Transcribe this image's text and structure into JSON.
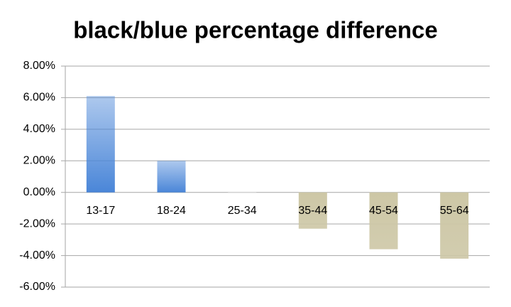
{
  "chart_data": {
    "type": "bar",
    "title": "black/blue percentage difference",
    "categories": [
      "13-17",
      "18-24",
      "25-34",
      "35-44",
      "45-54",
      "55-64"
    ],
    "values": [
      6.1,
      2.0,
      0.05,
      -2.3,
      -3.6,
      -4.2
    ],
    "colors": [
      "#4a86d8",
      "#4a86d8",
      "#e6e6e6",
      "#cdc7a6",
      "#cdc7a6",
      "#cdc7a6"
    ],
    "ylim": [
      -6,
      8
    ],
    "yticks": [
      {
        "value": -6,
        "label": "-6.00%"
      },
      {
        "value": -4,
        "label": "-4.00%"
      },
      {
        "value": -2,
        "label": "-2.00%"
      },
      {
        "value": 0,
        "label": "0.00%"
      },
      {
        "value": 2,
        "label": "2.00%"
      },
      {
        "value": 4,
        "label": "4.00%"
      },
      {
        "value": 6,
        "label": "6.00%"
      },
      {
        "value": 8,
        "label": "8.00%"
      }
    ],
    "grid": true
  }
}
